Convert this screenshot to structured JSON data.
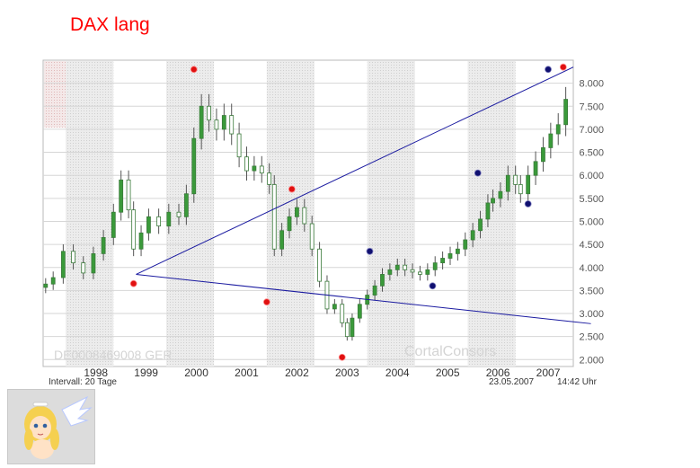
{
  "title": "DAX lang",
  "chart_data": {
    "type": "candlestick",
    "title": "DAX lang",
    "watermark_isin": "DE0008469008 GER",
    "watermark_brand": "CortalConsors",
    "interval_label": "Intervall: 20 Tage",
    "date_label": "23.05.2007",
    "time_label": "14:42 Uhr",
    "x_labels": [
      "1998",
      "1999",
      "2000",
      "2001",
      "2002",
      "2003",
      "2004",
      "2005",
      "2006",
      "2007"
    ],
    "y_ticks": [
      "2.000",
      "2.500",
      "3.000",
      "3.500",
      "4.000",
      "4.500",
      "5.000",
      "5.500",
      "6.000",
      "6.500",
      "7.000",
      "7.500",
      "8.000"
    ],
    "y_values": [
      2000,
      2500,
      3000,
      3500,
      4000,
      4500,
      5000,
      5500,
      6000,
      6500,
      7000,
      7500,
      8000
    ],
    "ylim": [
      1850,
      8500
    ],
    "xlim": [
      1997.0,
      2007.55
    ],
    "grid": true,
    "series_color_up": "#3a9a3a",
    "series_color_down": "#ffffff",
    "candles": [
      [
        1997.05,
        3640
      ],
      [
        1997.2,
        3780
      ],
      [
        1997.4,
        4350
      ],
      [
        1997.6,
        4100
      ],
      [
        1997.8,
        3880
      ],
      [
        1998.0,
        4300
      ],
      [
        1998.2,
        4650
      ],
      [
        1998.4,
        5200
      ],
      [
        1998.55,
        5900
      ],
      [
        1998.7,
        5250
      ],
      [
        1998.8,
        4400
      ],
      [
        1998.95,
        4750
      ],
      [
        1999.1,
        5100
      ],
      [
        1999.3,
        4900
      ],
      [
        1999.5,
        5200
      ],
      [
        1999.7,
        5100
      ],
      [
        1999.85,
        5600
      ],
      [
        2000.0,
        6800
      ],
      [
        2000.15,
        7500
      ],
      [
        2000.3,
        7200
      ],
      [
        2000.45,
        7000
      ],
      [
        2000.6,
        7300
      ],
      [
        2000.75,
        6900
      ],
      [
        2000.9,
        6400
      ],
      [
        2001.05,
        6100
      ],
      [
        2001.2,
        6200
      ],
      [
        2001.35,
        6050
      ],
      [
        2001.5,
        5800
      ],
      [
        2001.6,
        4400
      ],
      [
        2001.75,
        4800
      ],
      [
        2001.9,
        5100
      ],
      [
        2002.05,
        5300
      ],
      [
        2002.2,
        4950
      ],
      [
        2002.35,
        4400
      ],
      [
        2002.5,
        3700
      ],
      [
        2002.65,
        3100
      ],
      [
        2002.8,
        3200
      ],
      [
        2002.95,
        2800
      ],
      [
        2003.05,
        2500
      ],
      [
        2003.15,
        2900
      ],
      [
        2003.3,
        3200
      ],
      [
        2003.45,
        3400
      ],
      [
        2003.6,
        3600
      ],
      [
        2003.75,
        3850
      ],
      [
        2003.9,
        3950
      ],
      [
        2004.05,
        4050
      ],
      [
        2004.2,
        3950
      ],
      [
        2004.35,
        3900
      ],
      [
        2004.5,
        3850
      ],
      [
        2004.65,
        3950
      ],
      [
        2004.8,
        4100
      ],
      [
        2004.95,
        4200
      ],
      [
        2005.1,
        4300
      ],
      [
        2005.25,
        4400
      ],
      [
        2005.4,
        4600
      ],
      [
        2005.55,
        4800
      ],
      [
        2005.7,
        5050
      ],
      [
        2005.85,
        5400
      ],
      [
        2005.95,
        5500
      ],
      [
        2006.1,
        5650
      ],
      [
        2006.25,
        6000
      ],
      [
        2006.4,
        5800
      ],
      [
        2006.5,
        5600
      ],
      [
        2006.65,
        6000
      ],
      [
        2006.8,
        6300
      ],
      [
        2006.95,
        6600
      ],
      [
        2007.1,
        6900
      ],
      [
        2007.25,
        7100
      ],
      [
        2007.4,
        7650
      ]
    ],
    "trend_lines": [
      {
        "from": [
          1998.85,
          3850
        ],
        "to": [
          2007.55,
          8350
        ]
      },
      {
        "from": [
          1998.85,
          3850
        ],
        "to": [
          2007.9,
          2780
        ]
      }
    ],
    "markers_red": [
      [
        1998.8,
        3650
      ],
      [
        2000.0,
        8300
      ],
      [
        2001.45,
        3250
      ],
      [
        2001.95,
        5700
      ],
      [
        2002.95,
        2050
      ],
      [
        2007.35,
        8350
      ]
    ],
    "markers_blue": [
      [
        2003.5,
        4350
      ],
      [
        2004.75,
        3600
      ],
      [
        2005.65,
        6050
      ],
      [
        2006.65,
        5380
      ],
      [
        2007.05,
        8300
      ]
    ],
    "shaded_bands": [
      [
        1997.45,
        1998.4
      ],
      [
        1999.45,
        2000.4
      ],
      [
        2001.45,
        2002.4
      ],
      [
        2003.45,
        2004.4
      ],
      [
        2005.45,
        2006.4
      ]
    ]
  }
}
